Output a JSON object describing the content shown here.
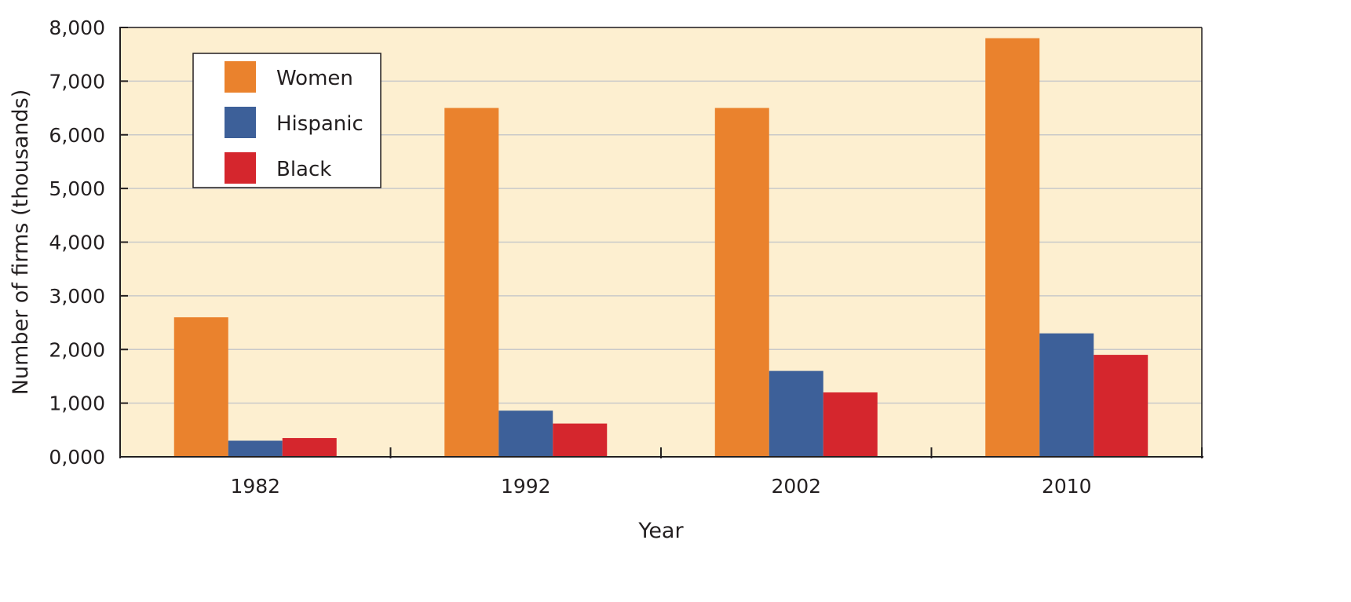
{
  "chart_data": {
    "type": "bar",
    "title": "",
    "xlabel": "Year",
    "ylabel": "Number of firms (thousands)",
    "categories": [
      "1982",
      "1992",
      "2002",
      "2010"
    ],
    "series": [
      {
        "name": "Women",
        "color": "#ea822d",
        "values": [
          2600,
          6500,
          6500,
          7800
        ]
      },
      {
        "name": "Hispanic",
        "color": "#3d6099",
        "values": [
          300,
          860,
          1600,
          2300
        ]
      },
      {
        "name": "Black",
        "color": "#d5262d",
        "values": [
          350,
          620,
          1200,
          1900
        ]
      }
    ],
    "ylim": [
      0,
      8000
    ],
    "yticks": [
      0,
      1000,
      2000,
      3000,
      4000,
      5000,
      6000,
      7000,
      8000
    ],
    "ytick_labels": [
      "0,000",
      "1,000",
      "2,000",
      "3,000",
      "4,000",
      "5,000",
      "6,000",
      "7,000",
      "8,000"
    ],
    "grid": true,
    "legend_position": "top-left",
    "background_color": "#fdefd0",
    "grid_color": "#c9c9c9"
  }
}
